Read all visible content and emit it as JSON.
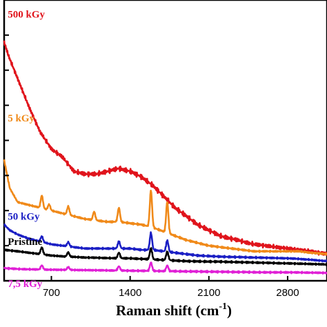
{
  "chart_data": {
    "type": "line",
    "xlabel": "Raman shift (cm",
    "xlabel_sup": "-1",
    "xlabel_close": ")",
    "xlim": [
      280,
      3150
    ],
    "ylim": [
      0,
      100
    ],
    "xticks": [
      700,
      1400,
      2100,
      2800
    ],
    "ytick_count": 9,
    "y_tick_labels_shown": false,
    "grid": false,
    "series": [
      {
        "name": "500 kGy",
        "color": "#e0141c",
        "label_anchor_x": 300,
        "label_y": 95,
        "points": [
          [
            280,
            85
          ],
          [
            320,
            80
          ],
          [
            400,
            72
          ],
          [
            500,
            62
          ],
          [
            600,
            53
          ],
          [
            700,
            47
          ],
          [
            800,
            44
          ],
          [
            900,
            39
          ],
          [
            1000,
            38
          ],
          [
            1100,
            38
          ],
          [
            1200,
            39
          ],
          [
            1300,
            40
          ],
          [
            1400,
            39
          ],
          [
            1500,
            37
          ],
          [
            1600,
            34
          ],
          [
            1700,
            30
          ],
          [
            1800,
            26
          ],
          [
            1900,
            23
          ],
          [
            2000,
            20
          ],
          [
            2100,
            18
          ],
          [
            2200,
            16
          ],
          [
            2300,
            15
          ],
          [
            2400,
            14
          ],
          [
            2500,
            13
          ],
          [
            2600,
            12.5
          ],
          [
            2700,
            12
          ],
          [
            2800,
            11.5
          ],
          [
            2900,
            11
          ],
          [
            3000,
            10.5
          ],
          [
            3150,
            9.5
          ]
        ],
        "peaks": []
      },
      {
        "name": "5 kGy",
        "color": "#f08a1a",
        "label_anchor_x": 300,
        "label_y": 58,
        "points": [
          [
            280,
            43
          ],
          [
            330,
            33
          ],
          [
            400,
            28
          ],
          [
            500,
            27
          ],
          [
            600,
            26
          ],
          [
            700,
            25
          ],
          [
            800,
            24
          ],
          [
            900,
            23
          ],
          [
            1000,
            22
          ],
          [
            1100,
            21.5
          ],
          [
            1200,
            21
          ],
          [
            1300,
            21
          ],
          [
            1400,
            20.5
          ],
          [
            1500,
            20
          ],
          [
            1600,
            19
          ],
          [
            1700,
            17.5
          ],
          [
            1800,
            16
          ],
          [
            1900,
            14.5
          ],
          [
            2000,
            13.5
          ],
          [
            2100,
            12.5
          ],
          [
            2200,
            12
          ],
          [
            2300,
            11.5
          ],
          [
            2400,
            11
          ],
          [
            2500,
            10.5
          ],
          [
            2600,
            10.5
          ],
          [
            2700,
            10.5
          ],
          [
            2800,
            10.5
          ],
          [
            2900,
            10.5
          ],
          [
            3000,
            10
          ],
          [
            3150,
            9.5
          ]
        ],
        "peaks": [
          [
            615,
            4.5
          ],
          [
            680,
            2
          ],
          [
            850,
            3
          ],
          [
            1080,
            3
          ],
          [
            1300,
            5
          ],
          [
            1585,
            13
          ],
          [
            1730,
            11
          ]
        ]
      },
      {
        "name": "50 kGy",
        "color": "#1b1fc4",
        "label_anchor_x": 300,
        "label_y": 23,
        "points": [
          [
            280,
            20
          ],
          [
            330,
            18
          ],
          [
            400,
            16.5
          ],
          [
            500,
            15
          ],
          [
            600,
            14
          ],
          [
            700,
            13
          ],
          [
            800,
            12.5
          ],
          [
            900,
            12
          ],
          [
            1000,
            11.5
          ],
          [
            1100,
            11.5
          ],
          [
            1200,
            11.5
          ],
          [
            1300,
            11.5
          ],
          [
            1400,
            11.5
          ],
          [
            1500,
            11
          ],
          [
            1600,
            11
          ],
          [
            1700,
            10.5
          ],
          [
            1800,
            10
          ],
          [
            1900,
            9.5
          ],
          [
            2000,
            9
          ],
          [
            2100,
            8.8
          ],
          [
            2200,
            8.6
          ],
          [
            2300,
            8.5
          ],
          [
            2400,
            8.4
          ],
          [
            2500,
            8.3
          ],
          [
            2600,
            8.2
          ],
          [
            2700,
            8.1
          ],
          [
            2800,
            8
          ],
          [
            2900,
            7.8
          ],
          [
            3000,
            7.5
          ],
          [
            3150,
            7
          ]
        ],
        "peaks": [
          [
            615,
            2
          ],
          [
            850,
            1.5
          ],
          [
            1300,
            2.5
          ],
          [
            1585,
            6
          ],
          [
            1730,
            4
          ]
        ]
      },
      {
        "name": "Pristine",
        "color": "#000000",
        "label_anchor_x": 300,
        "label_y": 14,
        "points": [
          [
            280,
            11
          ],
          [
            400,
            10.5
          ],
          [
            500,
            10
          ],
          [
            600,
            9.5
          ],
          [
            700,
            9
          ],
          [
            800,
            8.7
          ],
          [
            900,
            8.5
          ],
          [
            1000,
            8.3
          ],
          [
            1100,
            8.2
          ],
          [
            1200,
            8.1
          ],
          [
            1300,
            8
          ],
          [
            1400,
            8
          ],
          [
            1500,
            7.8
          ],
          [
            1600,
            7.6
          ],
          [
            1700,
            7.4
          ],
          [
            1800,
            7.2
          ],
          [
            1900,
            7
          ],
          [
            2000,
            6.9
          ],
          [
            2200,
            6.8
          ],
          [
            2400,
            6.6
          ],
          [
            2600,
            6.4
          ],
          [
            2800,
            6.2
          ],
          [
            3000,
            6
          ],
          [
            3150,
            5.8
          ]
        ],
        "peaks": [
          [
            615,
            2.5
          ],
          [
            850,
            1.5
          ],
          [
            1300,
            2
          ],
          [
            1585,
            4
          ],
          [
            1730,
            3
          ]
        ]
      },
      {
        "name": "7,5 kGy",
        "color": "#e020d6",
        "label_anchor_x": 300,
        "label_y": -1,
        "points": [
          [
            280,
            4.5
          ],
          [
            400,
            4.2
          ],
          [
            600,
            4
          ],
          [
            800,
            3.9
          ],
          [
            1000,
            3.8
          ],
          [
            1200,
            3.7
          ],
          [
            1400,
            3.6
          ],
          [
            1600,
            3.5
          ],
          [
            1800,
            3.4
          ],
          [
            2000,
            3.3
          ],
          [
            2200,
            3.2
          ],
          [
            2400,
            3.1
          ],
          [
            2600,
            3
          ],
          [
            2800,
            3
          ],
          [
            3000,
            2.9
          ],
          [
            3150,
            2.8
          ]
        ],
        "peaks": [
          [
            615,
            1.5
          ],
          [
            850,
            1
          ],
          [
            1300,
            1.5
          ],
          [
            1585,
            3
          ],
          [
            1730,
            2
          ]
        ]
      }
    ]
  },
  "colors": {
    "axis": "#000000",
    "background": "#ffffff"
  }
}
